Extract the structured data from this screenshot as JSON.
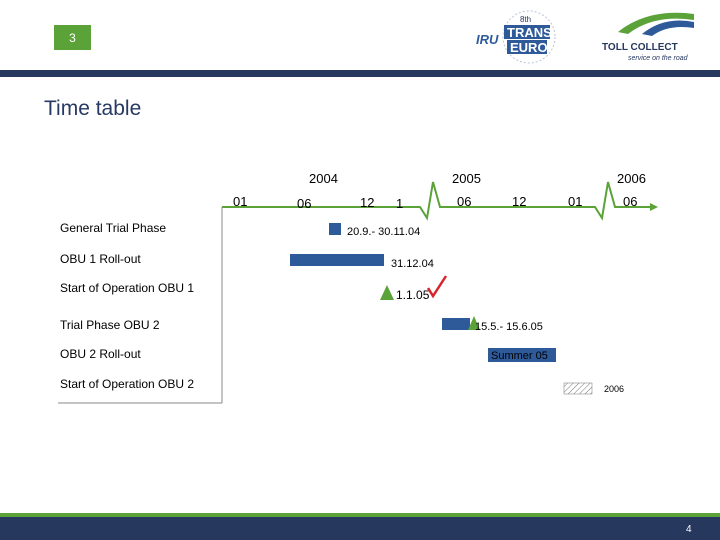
{
  "header": {
    "slide_number": "3",
    "title": "Time table",
    "logo_left_text": [
      "8th",
      "IRU",
      "TRANS",
      "EURO"
    ],
    "logo_right_brand": "TOLL COLLECT",
    "logo_right_tagline": "service on the road",
    "brand_colors": {
      "navy": "#27385f",
      "green": "#5ba238",
      "bar_blue": "#2e5a9a"
    }
  },
  "timeline": {
    "years": [
      "2004",
      "2005",
      "2006"
    ],
    "ticks": [
      "01",
      "06",
      "12",
      "1",
      "06",
      "12",
      "01",
      "06"
    ]
  },
  "rows": [
    {
      "label": "General Trial Phase",
      "annotation": "20.9.- 30.11.04"
    },
    {
      "label": "OBU 1 Roll-out",
      "annotation": "31.12.04"
    },
    {
      "label": "Start of Operation OBU 1",
      "annotation": "1.1.05"
    },
    {
      "label": "Trial Phase OBU 2",
      "annotation": "15.5.- 15.6.05"
    },
    {
      "label": "OBU 2 Roll-out",
      "annotation": "Summer 05"
    },
    {
      "label": "Start of Operation OBU 2",
      "annotation": "2006"
    }
  ],
  "footer": {
    "page_number": "4"
  }
}
